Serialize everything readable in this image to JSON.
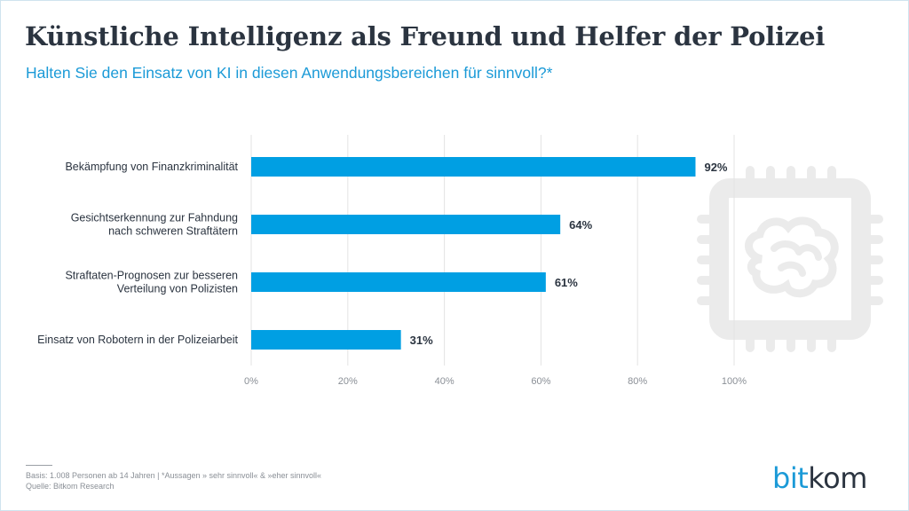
{
  "title": "Künstliche Intelligenz als Freund und Helfer der Polizei",
  "subtitle": "Halten Sie den Einsatz von KI in diesen Anwendungsbereichen für sinnvoll?*",
  "chart_data": {
    "type": "bar",
    "orientation": "horizontal",
    "categories": [
      [
        "Bekämpfung von Finanzkriminalität"
      ],
      [
        "Gesichtserkennung zur Fahndung",
        "nach schweren Straftätern"
      ],
      [
        "Straftaten-Prognosen zur besseren",
        "Verteilung von Polizisten"
      ],
      [
        "Einsatz von Robotern in der Polizeiarbeit"
      ]
    ],
    "values": [
      92,
      64,
      61,
      31
    ],
    "value_labels": [
      "92%",
      "64%",
      "61%",
      "31%"
    ],
    "xlim": [
      0,
      100
    ],
    "x_ticks": [
      0,
      20,
      40,
      60,
      80,
      100
    ],
    "x_tick_labels": [
      "0%",
      "20%",
      "40%",
      "60%",
      "80%",
      "100%"
    ],
    "grid": true,
    "bar_color": "#009fe3"
  },
  "footer": {
    "basis": "Basis: 1.008 Personen ab 14 Jahren | *Aussagen » sehr sinnvoll« & »eher sinnvoll«",
    "source": "Quelle: Bitkom Research"
  },
  "logo": {
    "part1": "bit",
    "part2": "kom"
  },
  "icon": "ai-chip-brain-icon",
  "colors": {
    "accent": "#1b9ad7",
    "text": "#2b3440",
    "icon": "#ebebeb"
  }
}
